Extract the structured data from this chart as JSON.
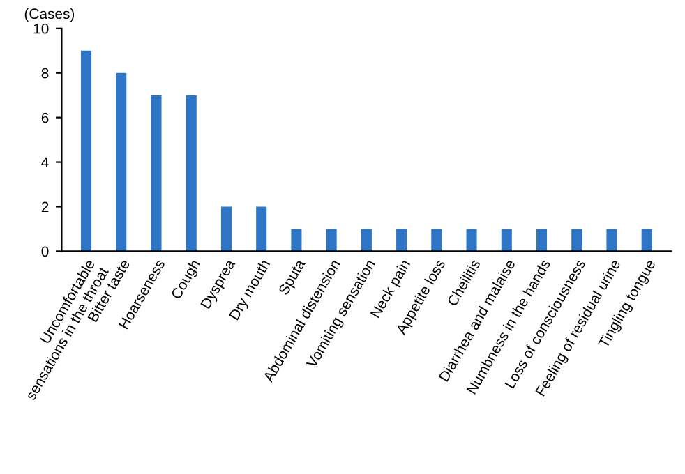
{
  "chart_data": {
    "type": "bar",
    "ylabel": "(Cases)",
    "categories": [
      "Uncomfortable\nsensations in the throat",
      "Bitter taste",
      "Hoarseness",
      "Cough",
      "Dysprea",
      "Dry mouth",
      "Sputa",
      "Abdominal distension",
      "Vomiting sensation",
      "Neck pain",
      "Appetite loss",
      "Cheilitis",
      "Diarrhea and malaise",
      "Numbness in the hands",
      "Loss of consciousness",
      "Feeling of residual urine",
      "Tingling tongue"
    ],
    "values": [
      9,
      8,
      7,
      7,
      2,
      2,
      1,
      1,
      1,
      1,
      1,
      1,
      1,
      1,
      1,
      1,
      1
    ],
    "color": "#2e75c6",
    "ylim": [
      0,
      10
    ],
    "yticks": [
      0,
      2,
      4,
      6,
      8,
      10
    ],
    "grid": false,
    "legend": false
  }
}
